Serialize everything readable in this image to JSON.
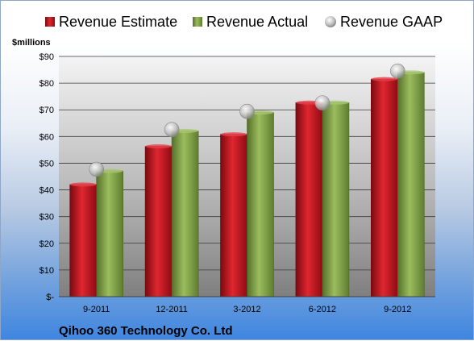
{
  "chart_data": {
    "type": "bar",
    "company": "Qihoo 360 Technology Co. Ltd",
    "unit_label": "$millions",
    "categories": [
      "9-2011",
      "12-2011",
      "3-2012",
      "6-2012",
      "9-2012"
    ],
    "series": [
      {
        "name": "Revenue Estimate",
        "type": "bar",
        "color": "#c8121d",
        "values": [
          42,
          56.3,
          60.8,
          72.7,
          81.5
        ]
      },
      {
        "name": "Revenue Actual",
        "type": "bar",
        "color": "#86a74c",
        "values": [
          47.1,
          62.1,
          69.0,
          72.7,
          84.0
        ]
      },
      {
        "name": "Revenue GAAP",
        "type": "marker",
        "color": "#b8b8b8",
        "values": [
          47.7,
          62.6,
          69.4,
          72.6,
          84.5
        ]
      }
    ],
    "y_ticks": [
      "$-",
      "$10",
      "$20",
      "$30",
      "$40",
      "$50",
      "$60",
      "$70",
      "$80",
      "$90"
    ],
    "ylim": [
      0,
      90
    ],
    "legend_position": "top",
    "grid": true
  }
}
